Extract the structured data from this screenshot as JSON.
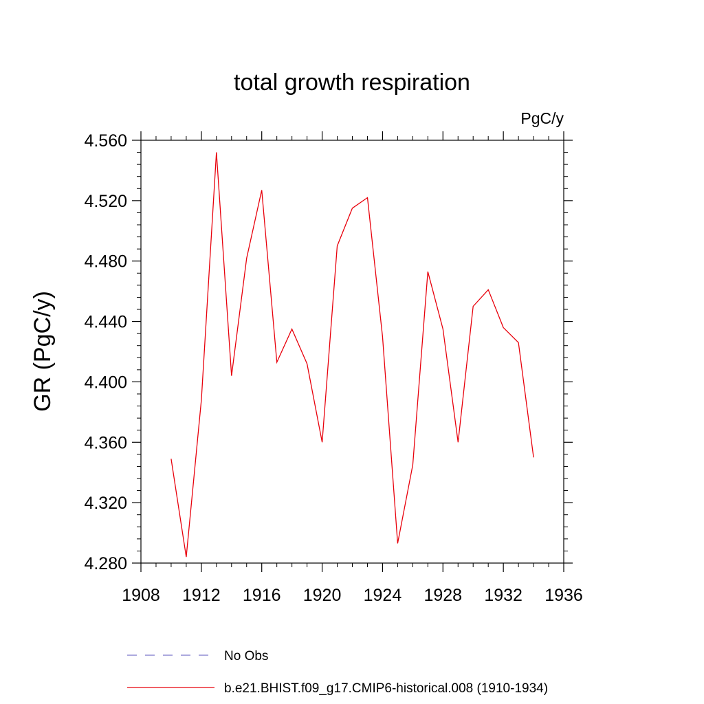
{
  "chart_data": {
    "type": "line",
    "title": "total growth respiration",
    "units_label": "PgC/y",
    "ylabel": "GR  (PgC/y)",
    "xlabel": "",
    "xlim": [
      1908,
      1936
    ],
    "ylim": [
      4.28,
      4.56
    ],
    "x_ticks": [
      "1908",
      "1912",
      "1916",
      "1920",
      "1924",
      "1928",
      "1932",
      "1936"
    ],
    "y_ticks": [
      "4.280",
      "4.320",
      "4.360",
      "4.400",
      "4.440",
      "4.480",
      "4.520",
      "4.560"
    ],
    "grid": false,
    "legend_position": "bottom",
    "series": [
      {
        "name": "No Obs",
        "color": "#7b76c9",
        "style": "dashed",
        "x": [],
        "values": []
      },
      {
        "name": "b.e21.BHIST.f09_g17.CMIP6-historical.008 (1910-1934)",
        "color": "#e8000b",
        "style": "solid",
        "x": [
          1910,
          1911,
          1912,
          1913,
          1914,
          1915,
          1916,
          1917,
          1918,
          1919,
          1920,
          1921,
          1922,
          1923,
          1924,
          1925,
          1926,
          1927,
          1928,
          1929,
          1930,
          1931,
          1932,
          1933,
          1934
        ],
        "values": [
          4.349,
          4.284,
          4.388,
          4.552,
          4.404,
          4.482,
          4.527,
          4.413,
          4.435,
          4.412,
          4.36,
          4.49,
          4.515,
          4.522,
          4.43,
          4.293,
          4.345,
          4.473,
          4.435,
          4.36,
          4.45,
          4.461,
          4.436,
          4.426,
          4.35
        ]
      }
    ]
  }
}
